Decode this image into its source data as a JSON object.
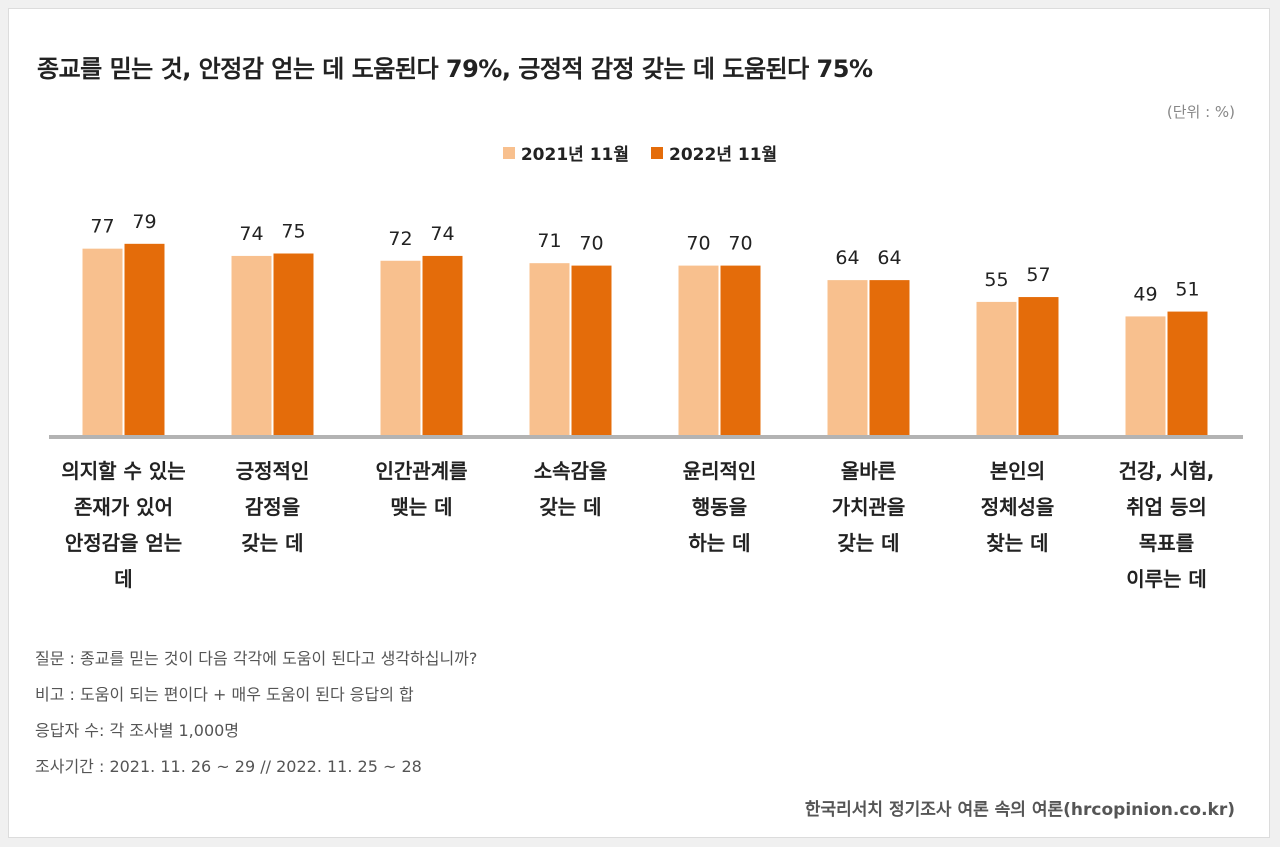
{
  "title": "종교를 믿는 것, 안정감 얻는 데 도움된다 79%, 긍정적 감정 갖는 데 도움된다 75%",
  "unit": "(단위 : %)",
  "colors": {
    "series1": "#f8c08e",
    "series2": "#e46c0a",
    "axis": "#b3b3b3"
  },
  "chart_data": {
    "type": "bar",
    "categories": [
      [
        "의지할 수 있는",
        "존재가 있어",
        "안정감을 얻는",
        "데"
      ],
      [
        "긍정적인",
        "감정을",
        "갖는 데"
      ],
      [
        "인간관계를",
        "맺는 데"
      ],
      [
        "소속감을",
        "갖는 데"
      ],
      [
        "윤리적인",
        "행동을",
        "하는 데"
      ],
      [
        "올바른",
        "가치관을",
        "갖는 데"
      ],
      [
        "본인의",
        "정체성을",
        "찾는 데"
      ],
      [
        "건강, 시험,",
        "취업 등의",
        "목표를",
        "이루는 데"
      ]
    ],
    "series": [
      {
        "name": "2021년 11월",
        "values": [
          77,
          74,
          72,
          71,
          70,
          64,
          55,
          49
        ]
      },
      {
        "name": "2022년 11월",
        "values": [
          79,
          75,
          74,
          70,
          70,
          64,
          57,
          51
        ]
      }
    ],
    "ylim": [
      0,
      100
    ],
    "legend": "top-center",
    "grid": false
  },
  "notes": [
    "질문 : 종교를 믿는 것이 다음 각각에 도움이 된다고 생각하십니까?",
    "비고 : 도움이 되는 편이다 + 매우 도움이 된다 응답의 합",
    "응답자 수: 각 조사별 1,000명",
    "조사기간 : 2021. 11. 26 ~ 29 // 2022. 11. 25 ~ 28"
  ],
  "source": "한국리서치 정기조사 여론 속의 여론(hrcopinion.co.kr)"
}
